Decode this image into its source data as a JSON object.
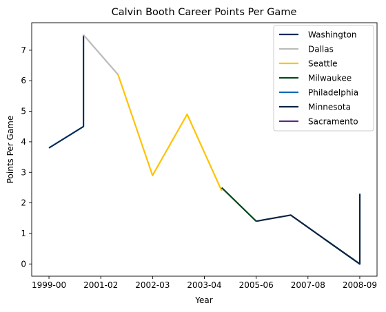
{
  "chart_data": {
    "type": "line",
    "title": "Calvin Booth Career Points Per Game",
    "xlabel": "Year",
    "ylabel": "Points Per Game",
    "x_ticks": [
      "1999-00",
      "2001-02",
      "2002-03",
      "2003-04",
      "2005-06",
      "2007-08",
      "2008-09"
    ],
    "y_ticks": [
      "0",
      "1",
      "2",
      "3",
      "4",
      "5",
      "6",
      "7"
    ],
    "xlim": [
      -0.5,
      9.5
    ],
    "ylim": [
      -0.4,
      7.9
    ],
    "grid": false,
    "legend_position": "top-right",
    "series": [
      {
        "name": "Washington",
        "color": "#002B5C",
        "x": [
          0,
          1,
          1
        ],
        "y": [
          3.8,
          4.5,
          7.5
        ]
      },
      {
        "name": "Dallas",
        "color": "#BBBBBB",
        "x": [
          1,
          2
        ],
        "y": [
          7.5,
          6.2
        ]
      },
      {
        "name": "Seattle",
        "color": "#FFC200",
        "x": [
          2,
          3,
          4,
          5
        ],
        "y": [
          6.2,
          2.9,
          4.9,
          2.4
        ]
      },
      {
        "name": "Milwaukee",
        "color": "#00471B",
        "x": [
          5,
          6
        ],
        "y": [
          2.5,
          1.4
        ]
      },
      {
        "name": "Philadelphia",
        "color": "#006BB6",
        "x": [
          8,
          9
        ],
        "y": [
          0.8,
          0.0
        ]
      },
      {
        "name": "Minnesota",
        "color": "#0C2340",
        "x": [
          6,
          7,
          8,
          9,
          9
        ],
        "y": [
          1.4,
          1.6,
          0.8,
          0.0,
          2.3
        ]
      },
      {
        "name": "Sacramento",
        "color": "#5A2D81",
        "x": [
          9,
          9
        ],
        "y": [
          0.0,
          0.0
        ]
      }
    ]
  }
}
